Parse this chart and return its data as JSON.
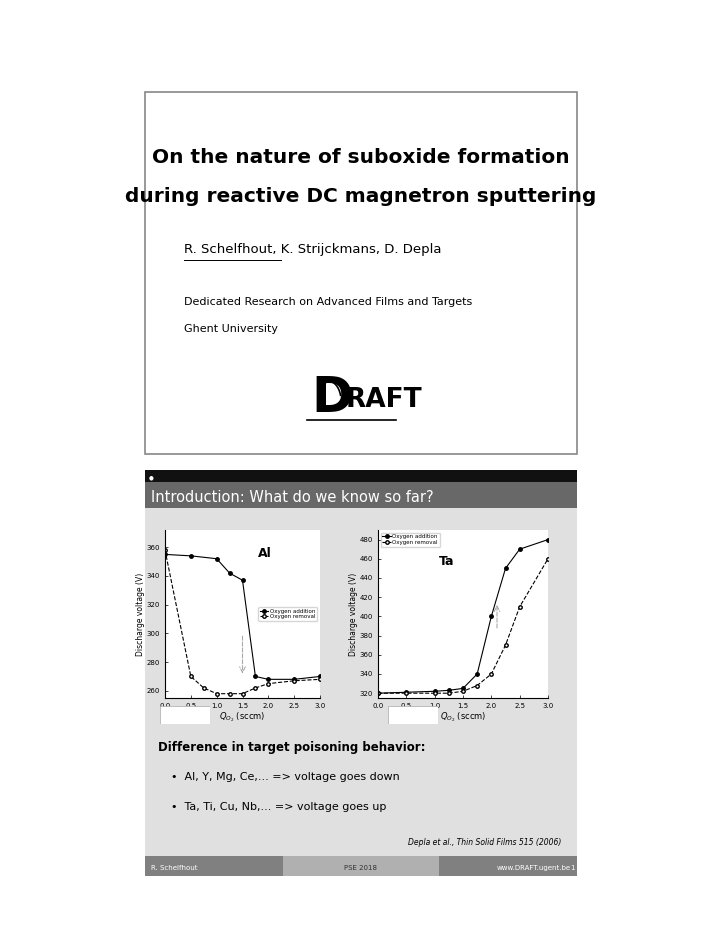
{
  "slide1": {
    "title_line1": "On the nature of suboxide formation",
    "title_line2": "during reactive DC magnetron sputtering",
    "authors": "R. Schelfhout, K. Strijckmans, D. Depla",
    "affiliation1": "Dedicated Research on Advanced Films and Targets",
    "affiliation2": "Ghent University",
    "box_edge": "#777777"
  },
  "slide2": {
    "header_title": "Introduction: What do we know so far?",
    "bullet_title": "Difference in target poisoning behavior:",
    "bullets": [
      "Al, Y, Mg, Ce,... => voltage goes down",
      "Ta, Ti, Cu, Nb,... => voltage goes up"
    ],
    "citation": "Depla et al., Thin Solid Films 515 (2006)",
    "footer_left": "R. Schelfhout",
    "footer_center": "PSE 2018",
    "footer_right": "www.DRAFT.ugent.be",
    "al_title": "Al",
    "ta_title": "Ta",
    "al_addition_x": [
      0.0,
      0.5,
      1.0,
      1.25,
      1.5,
      1.75,
      2.0,
      2.5,
      3.0
    ],
    "al_addition_y": [
      355,
      354,
      352,
      342,
      337,
      270,
      268,
      268,
      270
    ],
    "al_removal_x": [
      0.0,
      0.5,
      0.75,
      1.0,
      1.25,
      1.5,
      1.75,
      2.0,
      2.5,
      3.0
    ],
    "al_removal_y": [
      358,
      270,
      262,
      258,
      258,
      258,
      262,
      265,
      267,
      268
    ],
    "ta_addition_x": [
      0.0,
      0.5,
      1.0,
      1.25,
      1.5,
      1.75,
      2.0,
      2.25,
      2.5,
      3.0
    ],
    "ta_addition_y": [
      320,
      321,
      322,
      323,
      325,
      340,
      400,
      450,
      470,
      480
    ],
    "ta_removal_x": [
      0.0,
      0.5,
      1.0,
      1.25,
      1.5,
      1.75,
      2.0,
      2.25,
      2.5,
      3.0
    ],
    "ta_removal_y": [
      320,
      320,
      320,
      320,
      322,
      328,
      340,
      370,
      410,
      460
    ],
    "al_ylim": [
      255,
      372
    ],
    "al_yticks": [
      260,
      280,
      300,
      320,
      340,
      360
    ],
    "ta_ylim": [
      315,
      490
    ],
    "ta_yticks": [
      320,
      340,
      360,
      380,
      400,
      420,
      440,
      460,
      480
    ]
  }
}
